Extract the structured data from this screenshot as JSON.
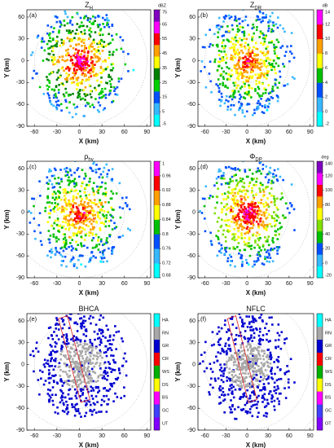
{
  "chart_data": [
    {
      "type": "ppi",
      "title": "Z",
      "title_subscript": "H",
      "panel_label": "(a)",
      "xlabel": "X (km)",
      "ylabel": "Y (km)",
      "xlim": [
        -70,
        95
      ],
      "ylim": [
        -90,
        70
      ],
      "xticks": [
        -60,
        -30,
        0,
        30,
        60,
        90
      ],
      "yticks": [
        -90,
        -60,
        -30,
        0,
        30,
        60
      ],
      "colorbar": {
        "unit": "dBZ",
        "lim": [
          -5,
          75
        ],
        "ticks": [
          -5,
          5,
          15,
          25,
          35,
          45,
          55,
          65,
          75
        ],
        "colors": [
          "#00ffff",
          "#38b8ff",
          "#0050ff",
          "#00d000",
          "#008000",
          "#ffff00",
          "#ffa000",
          "#ff0000",
          "#ff00ff",
          "#8000c0"
        ]
      }
    },
    {
      "type": "ppi",
      "title": "Z",
      "title_subscript": "DR",
      "panel_label": "(b)",
      "xlabel": "X (km)",
      "ylabel": "Y (km)",
      "xlim": [
        -70,
        95
      ],
      "ylim": [
        -90,
        70
      ],
      "xticks": [
        -60,
        -30,
        0,
        30,
        60,
        90
      ],
      "yticks": [
        -90,
        -60,
        -30,
        0,
        30,
        60
      ],
      "colorbar": {
        "unit": "dB",
        "lim": [
          -2,
          14
        ],
        "ticks": [
          -2,
          0,
          2,
          4,
          6,
          8,
          10,
          12,
          14
        ],
        "colors": [
          "#00ffff",
          "#38b8ff",
          "#0050ff",
          "#00c000",
          "#ffff00",
          "#ffa000",
          "#ff0000",
          "#ff00ff"
        ]
      }
    },
    {
      "type": "ppi",
      "title": "ρ",
      "title_subscript": "hv",
      "panel_label": "(c)",
      "xlabel": "X (km)",
      "ylabel": "Y (km)",
      "xlim": [
        -70,
        95
      ],
      "ylim": [
        -90,
        70
      ],
      "xticks": [
        -60,
        -30,
        0,
        30,
        60,
        90
      ],
      "yticks": [
        -90,
        -60,
        -30,
        0,
        30,
        60
      ],
      "colorbar": {
        "lim": [
          0.68,
          1
        ],
        "ticks": [
          0.68,
          0.72,
          0.76,
          0.8,
          0.84,
          0.88,
          0.92,
          0.96,
          1
        ],
        "colors": [
          "#00ffff",
          "#38b8ff",
          "#0050ff",
          "#00c000",
          "#ffff00",
          "#ffa000",
          "#ff0000",
          "#ff00ff"
        ]
      }
    },
    {
      "type": "ppi",
      "title": "Φ",
      "title_subscript": "DP",
      "panel_label": "(d)",
      "xlabel": "X (km)",
      "ylabel": "Y (km)",
      "xlim": [
        -70,
        95
      ],
      "ylim": [
        -90,
        70
      ],
      "xticks": [
        -60,
        -30,
        0,
        30,
        60,
        90
      ],
      "yticks": [
        -90,
        -60,
        -30,
        0,
        30,
        60
      ],
      "colorbar": {
        "unit": "deg",
        "lim": [
          -20,
          140
        ],
        "ticks": [
          -20,
          0,
          20,
          40,
          60,
          80,
          100,
          120,
          140
        ],
        "colors": [
          "#00ffff",
          "#38b8ff",
          "#0050ff",
          "#00c000",
          "#80e000",
          "#ffff00",
          "#ffa000",
          "#ff0000",
          "#ff00ff",
          "#8000c0"
        ]
      }
    },
    {
      "type": "ppi",
      "title": "BHCA",
      "panel_label": "(e)",
      "xlabel": "X (km)",
      "ylabel": "Y (km)",
      "xlim": [
        -70,
        95
      ],
      "ylim": [
        -90,
        70
      ],
      "xticks": [
        -60,
        -30,
        0,
        30,
        60,
        90
      ],
      "yticks": [
        -90,
        -60,
        -30,
        0,
        30,
        60
      ],
      "colorbar": {
        "categories": [
          "HA",
          "RN",
          "GR",
          "CR",
          "WS",
          "DS",
          "BS",
          "GC",
          "UT"
        ],
        "colors": [
          "#8000ff",
          "#4040ff",
          "#ff00ff",
          "#ffff00",
          "#00b000",
          "#ff0000",
          "#0000d0",
          "#a8a8a8",
          "#00ffff"
        ]
      }
    },
    {
      "type": "ppi",
      "title": "NFLC",
      "panel_label": "(f)",
      "xlabel": "X (km)",
      "ylabel": "Y (km)",
      "xlim": [
        -70,
        95
      ],
      "ylim": [
        -90,
        70
      ],
      "xticks": [
        -60,
        -30,
        0,
        30,
        60,
        90
      ],
      "yticks": [
        -90,
        -60,
        -30,
        0,
        30,
        60
      ],
      "colorbar": {
        "categories": [
          "HA",
          "RN",
          "GR",
          "CR",
          "WS",
          "DS",
          "BS",
          "GC",
          "OT"
        ],
        "colors": [
          "#8000ff",
          "#4040ff",
          "#ff00ff",
          "#ffff00",
          "#00b000",
          "#ff0000",
          "#0000d0",
          "#a8a8a8",
          "#00ffff"
        ]
      }
    }
  ]
}
